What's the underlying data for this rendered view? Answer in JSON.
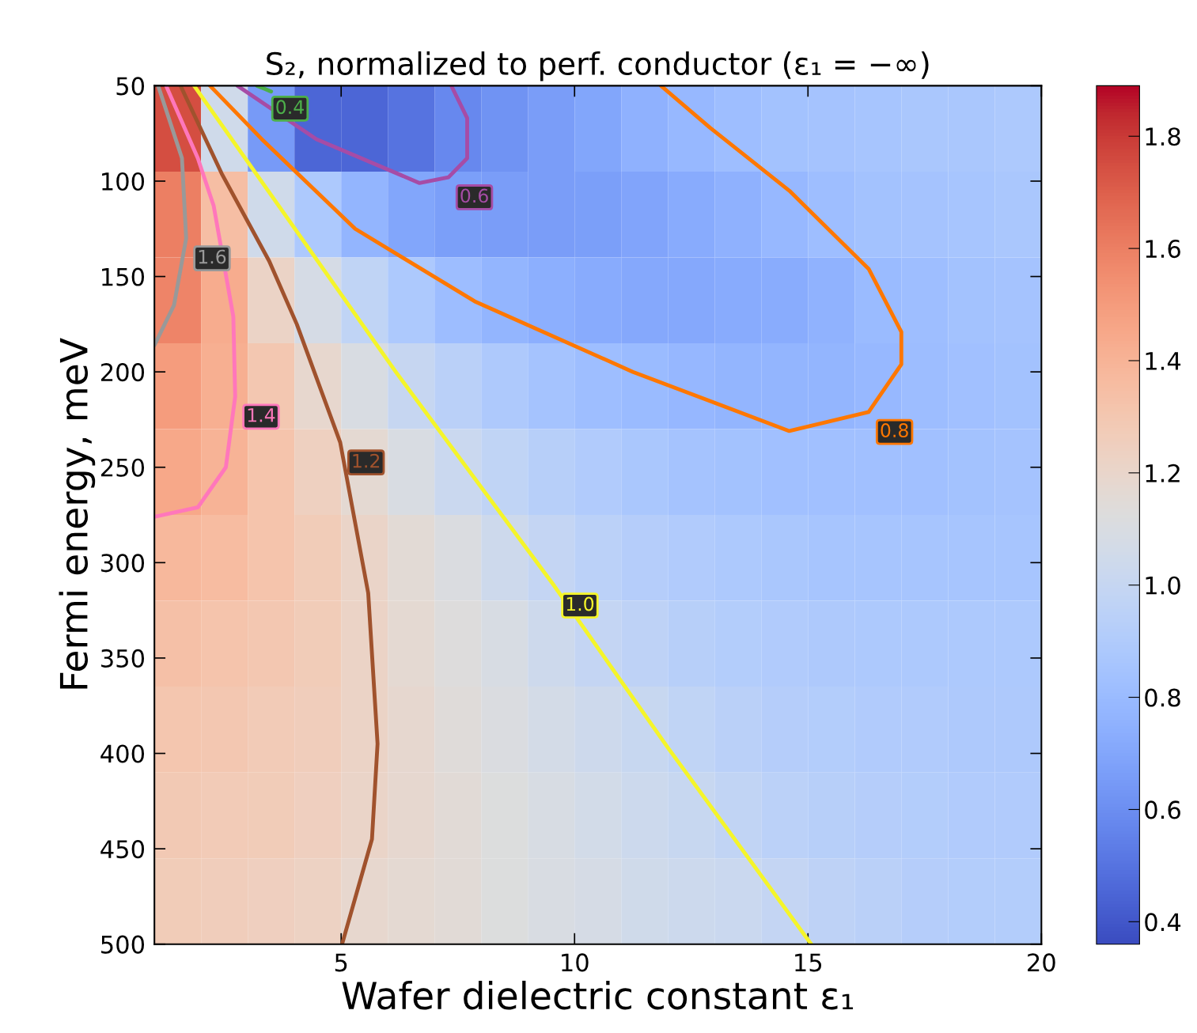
{
  "chart_data": {
    "type": "heatmap",
    "title": "S₂, normalized to perf. conductor (ε₁ = −∞)",
    "xlabel": "Wafer dielectric constant ε₁",
    "ylabel": "Fermi energy, meV",
    "xlim": [
      1,
      20
    ],
    "xticks": [
      5,
      10,
      15,
      20
    ],
    "ylim": [
      500,
      50
    ],
    "yticks": [
      50,
      100,
      150,
      200,
      250,
      300,
      350,
      400,
      450,
      500
    ],
    "clim": [
      0.36,
      1.89
    ],
    "cticks": [
      0.4,
      0.6,
      0.8,
      {
        "value": 1.0,
        "label": "1.0"
      },
      1.2,
      1.4,
      1.6,
      1.8
    ],
    "cells": [
      [
        1.75,
        1.05,
        0.65,
        0.45,
        0.45,
        0.5,
        0.58,
        0.62,
        0.66,
        0.7,
        0.75,
        0.79,
        0.82,
        0.84,
        0.85,
        0.86,
        0.87,
        0.87,
        0.88
      ],
      [
        1.6,
        1.35,
        1.05,
        0.88,
        0.77,
        0.7,
        0.67,
        0.66,
        0.66,
        0.67,
        0.69,
        0.72,
        0.75,
        0.79,
        0.82,
        0.84,
        0.85,
        0.86,
        0.87
      ],
      [
        1.58,
        1.43,
        1.22,
        1.08,
        0.97,
        0.88,
        0.81,
        0.77,
        0.74,
        0.72,
        0.71,
        0.71,
        0.72,
        0.73,
        0.76,
        0.8,
        0.82,
        0.84,
        0.85
      ],
      [
        1.5,
        1.42,
        1.3,
        1.19,
        1.1,
        1.0,
        0.94,
        0.89,
        0.85,
        0.82,
        0.8,
        0.78,
        0.77,
        0.77,
        0.77,
        0.79,
        0.81,
        0.83,
        0.84
      ],
      [
        1.45,
        1.4,
        1.32,
        1.24,
        1.17,
        1.1,
        1.02,
        0.97,
        0.93,
        0.9,
        0.87,
        0.85,
        0.84,
        0.83,
        0.83,
        0.83,
        0.83,
        0.84,
        0.85
      ],
      [
        1.38,
        1.36,
        1.32,
        1.27,
        1.21,
        1.16,
        1.11,
        1.04,
        0.99,
        0.95,
        0.92,
        0.9,
        0.88,
        0.87,
        0.86,
        0.86,
        0.86,
        0.86,
        0.86
      ],
      [
        1.34,
        1.32,
        1.3,
        1.27,
        1.22,
        1.17,
        1.13,
        1.09,
        1.04,
        0.99,
        0.96,
        0.93,
        0.91,
        0.9,
        0.89,
        0.88,
        0.88,
        0.88,
        0.88
      ],
      [
        1.31,
        1.3,
        1.28,
        1.26,
        1.22,
        1.18,
        1.14,
        1.11,
        1.07,
        1.04,
        1.01,
        0.97,
        0.94,
        0.92,
        0.91,
        0.9,
        0.9,
        0.89,
        0.89
      ],
      [
        1.29,
        1.28,
        1.27,
        1.25,
        1.21,
        1.18,
        1.15,
        1.12,
        1.09,
        1.06,
        1.03,
        1.01,
        0.98,
        0.95,
        0.93,
        0.92,
        0.91,
        0.9,
        0.9
      ],
      [
        1.27,
        1.26,
        1.25,
        1.23,
        1.19,
        1.17,
        1.15,
        1.12,
        1.1,
        1.08,
        1.05,
        1.03,
        1.02,
        0.99,
        0.96,
        0.94,
        0.92,
        0.91,
        0.91
      ]
    ],
    "series": [
      {
        "type": "line",
        "name": "0.4",
        "color": "#4daf4a",
        "x": [
          3.2,
          3.35,
          3.5
        ],
        "values": [
          50,
          51.5,
          53
        ]
      },
      {
        "type": "line",
        "name": "0.6",
        "color": "#a64ca6",
        "x": [
          2.78,
          4.47,
          6.68,
          7.3,
          7.7,
          7.7,
          7.36
        ],
        "values": [
          50,
          78,
          101,
          98,
          88,
          67,
          50
        ]
      },
      {
        "type": "line",
        "name": "0.8",
        "color": "#ff7700",
        "x": [
          2.19,
          3.3,
          5.3,
          7.86,
          11.25,
          14.6,
          16.3,
          17.0,
          17.0,
          16.3,
          14.6,
          12.9,
          11.85
        ],
        "values": [
          50,
          78,
          125,
          163,
          200,
          231,
          221,
          196,
          179,
          146,
          105,
          72,
          50
        ]
      },
      {
        "type": "line",
        "name": "1.0",
        "color": "#f5f52a",
        "x": [
          1.85,
          6.17,
          9.56,
          12.0,
          15.07
        ],
        "values": [
          50,
          200,
          312,
          397,
          500
        ]
      },
      {
        "type": "line",
        "name": "1.2",
        "color": "#a0522d",
        "x": [
          1.56,
          2.44,
          3.46,
          4.05,
          4.98,
          5.58,
          5.78,
          5.66,
          5.02
        ],
        "values": [
          50,
          96,
          142,
          175,
          237,
          316,
          395,
          445,
          500
        ]
      },
      {
        "type": "line",
        "name": "1.4",
        "color": "#ff77bb",
        "x": [
          1.25,
          1.93,
          2.27,
          2.69,
          2.73,
          2.53,
          1.93,
          1.0
        ],
        "values": [
          50,
          88,
          113,
          171,
          213,
          250,
          271,
          276
        ]
      },
      {
        "type": "line",
        "name": "1.6",
        "color": "#999999",
        "x": [
          1.08,
          1.59,
          1.68,
          1.42,
          1.0
        ],
        "values": [
          50,
          88,
          130,
          165,
          186
        ]
      }
    ]
  }
}
